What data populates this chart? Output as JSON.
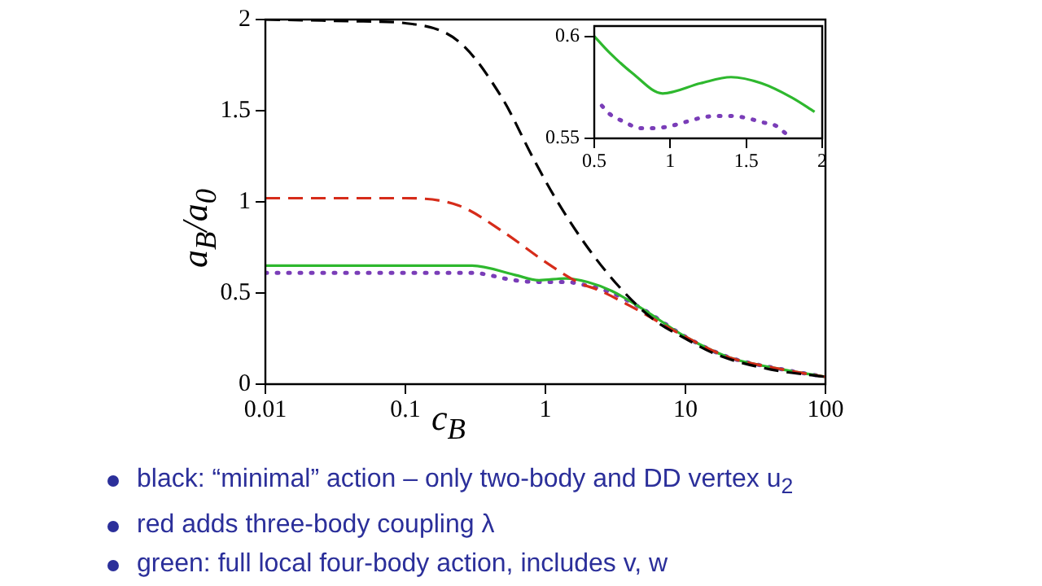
{
  "chart_data": [
    {
      "type": "line",
      "xlabel": "c$_{B}$",
      "ylabel": "a$_{B}$/a$_{0}$",
      "log": "x",
      "grid": false,
      "legend": false,
      "marker": "none",
      "xlim": [
        0.01,
        100
      ],
      "xticks": [
        0.01,
        0.1,
        1,
        10,
        100
      ],
      "ylim": [
        0,
        2
      ],
      "yticks": [
        0,
        0.5,
        1,
        1.5,
        2
      ],
      "annotations": [
        "black: “minimal” action – only two-body and DD vertex u$_{2}$",
        "red adds three-body coupling λ",
        "green: full local four-body action, includes v, w"
      ],
      "series": [
        {
          "color": "#000000",
          "line_style": "dashed",
          "x": [
            0.01,
            0.05,
            0.1,
            0.24,
            0.49,
            0.83,
            1.2,
            2,
            3.4,
            5.8,
            10,
            17,
            41,
            100
          ],
          "values": [
            2.0,
            1.99,
            1.98,
            1.88,
            1.57,
            1.23,
            1.01,
            0.75,
            0.53,
            0.36,
            0.25,
            0.16,
            0.08,
            0.04
          ]
        },
        {
          "color": "#d62c1a",
          "line_style": "dashed",
          "x": [
            0.01,
            0.1,
            0.24,
            0.49,
            1,
            1.7,
            2.5,
            4,
            10,
            20,
            50,
            100
          ],
          "values": [
            1.02,
            1.02,
            0.98,
            0.84,
            0.67,
            0.56,
            0.51,
            0.43,
            0.26,
            0.15,
            0.08,
            0.04
          ]
        },
        {
          "color": "#2eb82e",
          "line_style": "solid",
          "x": [
            0.01,
            0.1,
            0.3,
            0.6,
            0.9,
            1.4,
            2,
            3,
            5,
            10,
            20,
            50,
            100
          ],
          "values": [
            0.65,
            0.65,
            0.65,
            0.6,
            0.57,
            0.58,
            0.56,
            0.51,
            0.41,
            0.26,
            0.15,
            0.08,
            0.04
          ]
        },
        {
          "color": "#7a3db8",
          "line_style": "dotted",
          "x": [
            0.01,
            0.1,
            0.3,
            0.6,
            0.9,
            1.4,
            2,
            3,
            5,
            10,
            20,
            50,
            100
          ],
          "values": [
            0.61,
            0.61,
            0.61,
            0.57,
            0.56,
            0.56,
            0.54,
            0.5,
            0.41,
            0.26,
            0.15,
            0.08,
            0.04
          ]
        }
      ]
    },
    {
      "type": "line",
      "grid": false,
      "legend": false,
      "marker": "none",
      "xlim": [
        0.5,
        2
      ],
      "xticks": [
        0.5,
        1,
        1.5,
        2
      ],
      "ylim": [
        0.55,
        0.605
      ],
      "yticks": [
        0.55,
        0.6
      ],
      "series": [
        {
          "color": "#2eb82e",
          "line_style": "solid",
          "x": [
            0.5,
            0.6,
            0.75,
            0.95,
            1.2,
            1.4,
            1.6,
            1.8,
            1.95
          ],
          "values": [
            0.6,
            0.592,
            0.582,
            0.572,
            0.577,
            0.58,
            0.577,
            0.57,
            0.563
          ]
        },
        {
          "color": "#7a3db8",
          "line_style": "dotted",
          "x": [
            0.55,
            0.6,
            0.7,
            0.8,
            0.9,
            1.0,
            1.1,
            1.2,
            1.3,
            1.4,
            1.5,
            1.6,
            1.7,
            1.75,
            1.8
          ],
          "values": [
            0.566,
            0.562,
            0.558,
            0.555,
            0.555,
            0.556,
            0.558,
            0.56,
            0.561,
            0.561,
            0.56,
            0.558,
            0.556,
            0.553,
            0.55
          ]
        }
      ]
    }
  ]
}
